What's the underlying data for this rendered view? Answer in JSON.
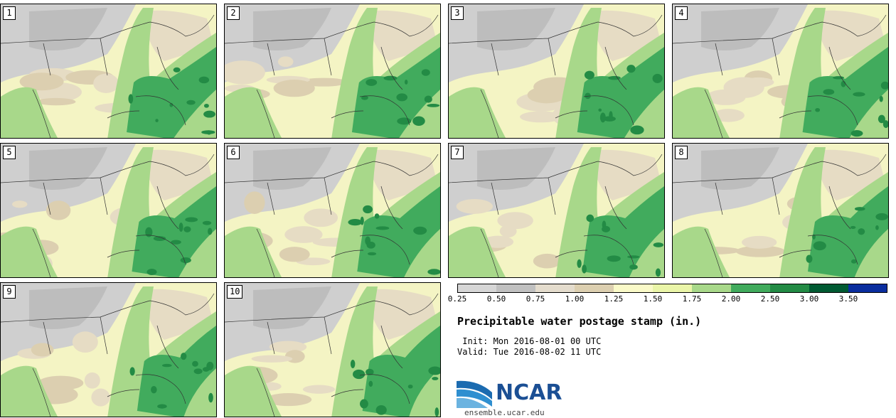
{
  "panels": [
    {
      "label": "1"
    },
    {
      "label": "2"
    },
    {
      "label": "3"
    },
    {
      "label": "4"
    },
    {
      "label": "5"
    },
    {
      "label": "6"
    },
    {
      "label": "7"
    },
    {
      "label": "8"
    },
    {
      "label": "9"
    },
    {
      "label": "10"
    }
  ],
  "colorbar": {
    "ticks": [
      "0.25",
      "0.50",
      "0.75",
      "1.00",
      "1.25",
      "1.50",
      "1.75",
      "2.00",
      "2.50",
      "3.00",
      "3.50"
    ],
    "colors": [
      "#d6d6d6",
      "#c0c0c0",
      "#e4dccd",
      "#dccfb0",
      "#fafac8",
      "#eaf5a8",
      "#a8d88a",
      "#41ab5d",
      "#238b45",
      "#005a32",
      "#0a2d9e"
    ]
  },
  "title": "Precipitable water postage stamp (in.)",
  "init": " Init: Mon 2016-08-01 00 UTC",
  "valid": "Valid: Tue 2016-08-02 11 UTC",
  "logo": {
    "text": "NCAR",
    "url": "ensemble.ucar.edu"
  }
}
